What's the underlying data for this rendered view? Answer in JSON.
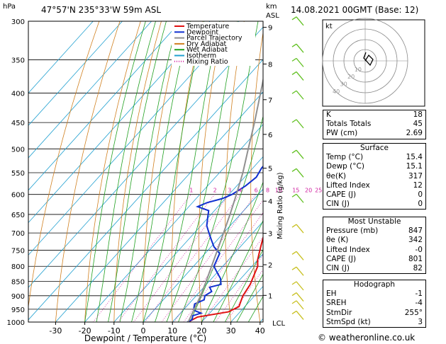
{
  "header": {
    "hpa_label": "hPa",
    "location": "47°57'N  235°33'W  59m  ASL",
    "km_label": "km",
    "asl_label": "ASL",
    "datetime": "14.08.2021  00GMT  (Base: 12)"
  },
  "footer": "© weatheronline.co.uk",
  "chart_data": {
    "type": "skew-t log-p",
    "xlabel": "Dewpoint / Temperature (°C)",
    "ylabel_right": "Mixing Ratio (g/kg)",
    "temperature_ticks": [
      -30,
      -20,
      -10,
      0,
      10,
      20,
      30,
      40
    ],
    "pressure_levels": [
      300,
      350,
      400,
      450,
      500,
      550,
      600,
      650,
      700,
      750,
      800,
      850,
      900,
      950,
      1000
    ],
    "height_km_ticks": [
      "1",
      "2",
      "3",
      "4",
      "5",
      "6",
      "7",
      "8",
      "9"
    ],
    "lcl_label": "LCL",
    "mixing_ratio_labels": [
      "1",
      "2",
      "3",
      "4",
      "6",
      "8",
      "10",
      "15",
      "20",
      "25"
    ],
    "legend": [
      {
        "name": "Temperature",
        "color": "#e01010"
      },
      {
        "name": "Dewpoint",
        "color": "#1030d0"
      },
      {
        "name": "Parcel Trajectory",
        "color": "#909090"
      },
      {
        "name": "Dry Adiabat",
        "color": "#d08020"
      },
      {
        "name": "Wet Adiabat",
        "color": "#20a020"
      },
      {
        "name": "Isotherm",
        "color": "#20a0d0"
      },
      {
        "name": "Mixing Ratio",
        "color": "#d020a0"
      }
    ],
    "series": [
      {
        "name": "Temperature",
        "points": [
          [
            1000,
            15.4
          ],
          [
            980,
            17
          ],
          [
            960,
            26
          ],
          [
            940,
            28
          ],
          [
            920,
            27
          ],
          [
            900,
            26
          ],
          [
            880,
            25.5
          ],
          [
            860,
            25
          ],
          [
            840,
            24
          ],
          [
            820,
            23
          ],
          [
            800,
            22
          ],
          [
            780,
            20
          ],
          [
            760,
            18.5
          ],
          [
            740,
            17
          ],
          [
            720,
            15.5
          ],
          [
            700,
            14
          ],
          [
            680,
            12.5
          ],
          [
            660,
            11
          ],
          [
            640,
            10
          ],
          [
            620,
            8.5
          ],
          [
            600,
            7
          ],
          [
            580,
            5.5
          ],
          [
            560,
            4
          ],
          [
            540,
            2
          ],
          [
            520,
            0
          ],
          [
            500,
            -2
          ],
          [
            480,
            -4.5
          ],
          [
            460,
            -7
          ],
          [
            440,
            -9.5
          ],
          [
            420,
            -12
          ],
          [
            400,
            -14.5
          ],
          [
            380,
            -17.5
          ],
          [
            360,
            -20
          ],
          [
            340,
            -23
          ],
          [
            320,
            -26.5
          ],
          [
            305,
            -29
          ],
          [
            300,
            -30
          ]
        ]
      },
      {
        "name": "Dewpoint",
        "points": [
          [
            1000,
            15.1
          ],
          [
            990,
            16
          ],
          [
            975,
            15
          ],
          [
            965,
            17
          ],
          [
            955,
            14
          ],
          [
            945,
            13
          ],
          [
            930,
            12
          ],
          [
            915,
            14
          ],
          [
            900,
            13
          ],
          [
            885,
            14
          ],
          [
            870,
            12
          ],
          [
            860,
            15
          ],
          [
            850,
            14
          ],
          [
            840,
            13
          ],
          [
            820,
            10
          ],
          [
            800,
            7
          ],
          [
            780,
            6
          ],
          [
            760,
            5
          ],
          [
            740,
            1
          ],
          [
            720,
            -2
          ],
          [
            700,
            -5
          ],
          [
            680,
            -8
          ],
          [
            660,
            -10
          ],
          [
            640,
            -12
          ],
          [
            630,
            -17
          ],
          [
            620,
            -15
          ],
          [
            610,
            -11
          ],
          [
            600,
            -9
          ],
          [
            580,
            -7
          ],
          [
            560,
            -6
          ],
          [
            540,
            -7
          ],
          [
            520,
            -7
          ],
          [
            510,
            2
          ],
          [
            500,
            5
          ],
          [
            490,
            3
          ],
          [
            470,
            1
          ],
          [
            450,
            -3
          ],
          [
            430,
            -1
          ],
          [
            410,
            2
          ],
          [
            395,
            1
          ],
          [
            385,
            2
          ],
          [
            375,
            -8
          ],
          [
            365,
            -10
          ],
          [
            350,
            -6
          ],
          [
            340,
            -12
          ],
          [
            330,
            -10
          ],
          [
            320,
            -11
          ],
          [
            310,
            -13
          ],
          [
            305,
            -15
          ],
          [
            300,
            -16
          ]
        ]
      },
      {
        "name": "Parcel Trajectory",
        "points": [
          [
            1000,
            15.4
          ],
          [
            900,
            11.5
          ],
          [
            850,
            9
          ],
          [
            800,
            6.2
          ],
          [
            750,
            3.2
          ],
          [
            700,
            0
          ],
          [
            650,
            -3.5
          ],
          [
            600,
            -7.5
          ],
          [
            550,
            -12
          ],
          [
            500,
            -17.5
          ],
          [
            450,
            -23.5
          ],
          [
            400,
            -30.5
          ],
          [
            350,
            -38.5
          ],
          [
            300,
            -48
          ]
        ]
      }
    ],
    "wind_barbs_description": "green/yellow wind barbs along right of chart",
    "hodograph": {
      "label": "kt",
      "ring_labels": [
        "10",
        "20",
        "30",
        "40"
      ]
    }
  },
  "indices": {
    "rows": [
      {
        "label": "K",
        "value": "18"
      },
      {
        "label": "Totals Totals",
        "value": "45"
      },
      {
        "label": "PW (cm)",
        "value": "2.69"
      }
    ],
    "surface": {
      "title": "Surface",
      "rows": [
        {
          "label": "Temp (°C)",
          "value": "15.4"
        },
        {
          "label": "Dewp (°C)",
          "value": "15.1"
        },
        {
          "label": "θe(K)",
          "value": "317"
        },
        {
          "label": "Lifted Index",
          "value": "12"
        },
        {
          "label": "CAPE (J)",
          "value": "0"
        },
        {
          "label": "CIN (J)",
          "value": "0"
        }
      ]
    },
    "most_unstable": {
      "title": "Most Unstable",
      "rows": [
        {
          "label": "Pressure (mb)",
          "value": "847"
        },
        {
          "label": "θe (K)",
          "value": "342"
        },
        {
          "label": "Lifted Index",
          "value": "-0"
        },
        {
          "label": "CAPE (J)",
          "value": "801"
        },
        {
          "label": "CIN (J)",
          "value": "82"
        }
      ]
    },
    "hodograph": {
      "title": "Hodograph",
      "rows": [
        {
          "label": "EH",
          "value": "-1"
        },
        {
          "label": "SREH",
          "value": "-4"
        },
        {
          "label": "StmDir",
          "value": "255°"
        },
        {
          "label": "StmSpd (kt)",
          "value": "3"
        }
      ]
    }
  }
}
